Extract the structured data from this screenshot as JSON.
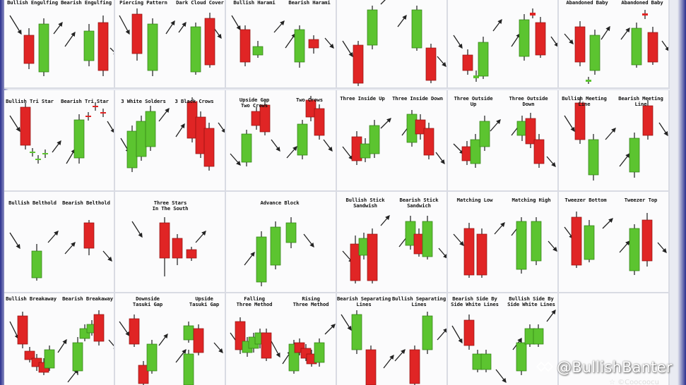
{
  "watermark": {
    "handle": "@BullishBanter",
    "sub": "☆ ©Coocoocu"
  },
  "colors": {
    "bull": "#5cc430",
    "bull_edge": "#2e7d12",
    "bear": "#e02525",
    "bear_edge": "#8e0f0f",
    "wick": "#1c1c1c",
    "arrow": "#222222"
  },
  "cells": [
    {
      "id": "r0c0",
      "labels": [
        "Bullish Engulfing",
        "Bearish Engulfing"
      ]
    },
    {
      "id": "r0c1",
      "labels": [
        "Piercing Pattern",
        "Dark Cloud Cover"
      ]
    },
    {
      "id": "r0c2",
      "labels": [
        "Bullish Harami",
        "Bearish Harami"
      ]
    },
    {
      "id": "r0c3",
      "labels": []
    },
    {
      "id": "r0c4",
      "labels": []
    },
    {
      "id": "r0c5",
      "labels": [
        "Abandoned Baby",
        "Abandoned Baby"
      ]
    },
    {
      "id": "r1c0",
      "labels": [
        "Bullish Tri Star",
        "Bearish Tri Star"
      ]
    },
    {
      "id": "r1c1",
      "labels": [
        "3 White Solders",
        "3 Black Crows"
      ]
    },
    {
      "id": "r1c2",
      "labels": [
        "Upside Gap\nTwo Crows",
        "Two Crows"
      ]
    },
    {
      "id": "r1c3",
      "labels": [
        "Three Inside Up",
        "Three Inside Down"
      ]
    },
    {
      "id": "r1c4",
      "labels": [
        "Three Outside\nUp",
        "Three Outside\nDown"
      ]
    },
    {
      "id": "r1c5",
      "labels": [
        "Bullish Meeting\nLine",
        "Bearish Meeting\nLine"
      ]
    },
    {
      "id": "r2c0",
      "labels": [
        "Bullish Belthold",
        "Bearish Belthold"
      ]
    },
    {
      "id": "r2c1",
      "labels": [
        "Three Stars\nIn The South"
      ]
    },
    {
      "id": "r2c2",
      "labels": [
        "Advance Block"
      ]
    },
    {
      "id": "r2c3",
      "labels": [
        "Bullish Stick\nSandwish",
        "Bearish Stick\nSandwich"
      ]
    },
    {
      "id": "r2c4",
      "labels": [
        "Matching Low",
        "Matching High"
      ]
    },
    {
      "id": "r2c5",
      "labels": [
        "Tweezer Bottom",
        "Tweezer Top"
      ]
    },
    {
      "id": "r3c0",
      "labels": [
        "Bullish Breakaway",
        "Bearish Breakaway"
      ]
    },
    {
      "id": "r3c1",
      "labels": [
        "Downside\nTasuki Gap",
        "Upside\nTasuki Gap"
      ]
    },
    {
      "id": "r3c2",
      "labels": [
        "Falling\nThree Method",
        "Rising\nThree Method"
      ]
    },
    {
      "id": "r3c3",
      "labels": [
        "Bearish Separating\nLines",
        "Bullish Separating\nLines"
      ]
    },
    {
      "id": "r3c4",
      "labels": [
        "Bearish Side By\nSide White Lines",
        "Bullish Side By\nSide White Lines"
      ]
    },
    {
      "id": "r3c5",
      "labels": []
    }
  ]
}
